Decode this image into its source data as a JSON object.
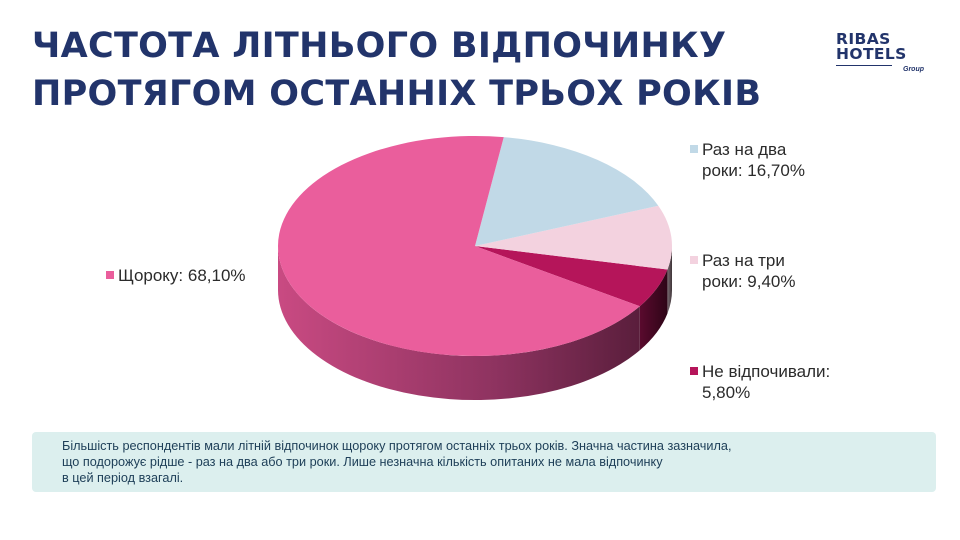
{
  "title": "Частота літнього відпочинку протягом останніх трьох років",
  "logo": {
    "line1": "RIBAS",
    "line2": "HOTELS",
    "line3": "Group"
  },
  "chart_data": {
    "type": "pie",
    "slices": [
      {
        "label": "Щороку: 68,10%",
        "value": 68.1,
        "color": "#ea5e9c"
      },
      {
        "label": "Раз на два роки: 16,70%",
        "value": 16.7,
        "color": "#c1d9e7"
      },
      {
        "label": "Раз на три роки: 9,40%",
        "value": 9.4,
        "color": "#f3d2df"
      },
      {
        "label": "Не відпочивали: 5,80%",
        "value": 5.8,
        "color": "#b5155a"
      }
    ]
  },
  "legend": {
    "annual": {
      "label": "Щороку: 68,10%",
      "color": "#ea5e9c"
    },
    "two_years": {
      "line1": "Раз на два",
      "line2": "роки: 16,70%",
      "color": "#c1d9e7"
    },
    "three_years": {
      "line1": "Раз на три",
      "line2": "роки: 9,40%",
      "color": "#f3d2df"
    },
    "none": {
      "line1": "Не відпочивали:",
      "line2": "5,80%",
      "color": "#b5155a"
    }
  },
  "note": {
    "line1": "Більшість респондентів мали літній відпочинок щороку протягом останніх трьох років. Значна частина зазначила,",
    "line2": "що подорожує рідше - раз на два або три роки. Лише незначна кількість опитаних не мала відпочинку",
    "line3": "в цей період взагалі."
  }
}
